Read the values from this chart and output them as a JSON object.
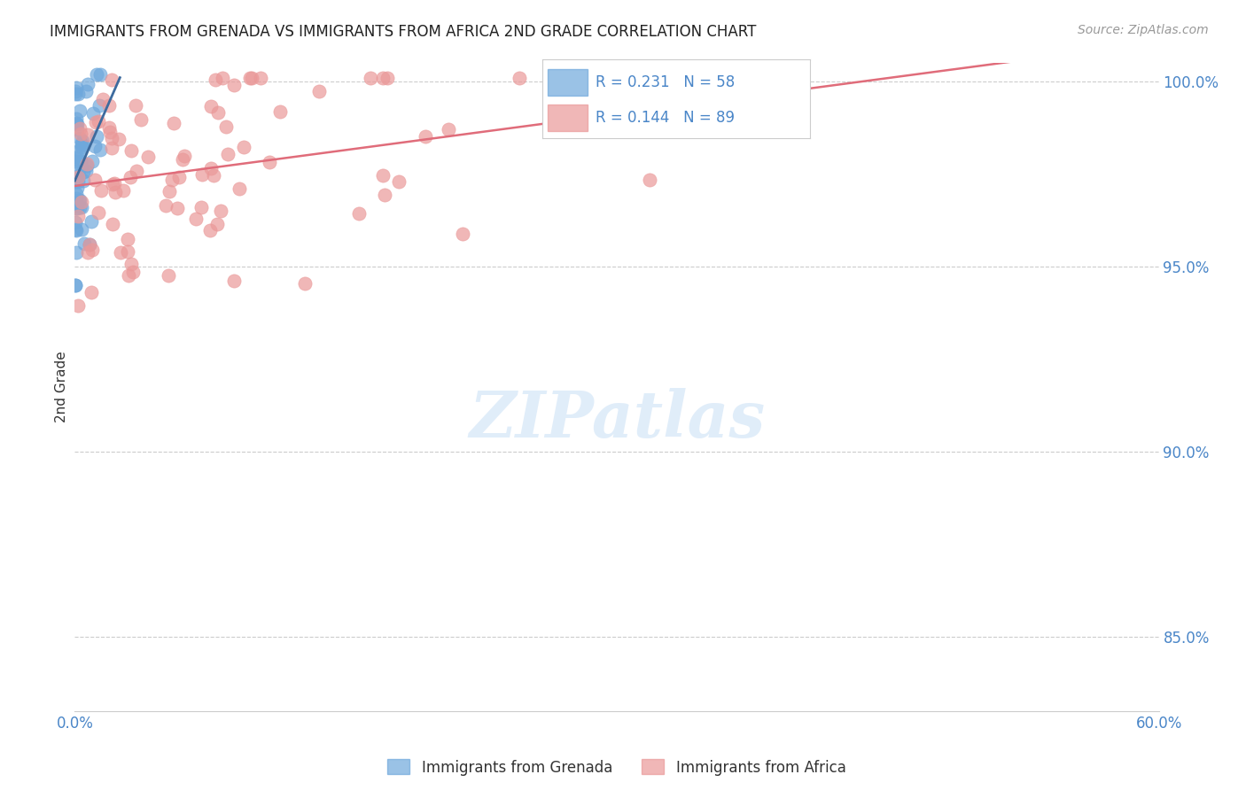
{
  "title": "IMMIGRANTS FROM GRENADA VS IMMIGRANTS FROM AFRICA 2ND GRADE CORRELATION CHART",
  "source": "Source: ZipAtlas.com",
  "ylabel": "2nd Grade",
  "xlim": [
    0.0,
    0.6
  ],
  "ylim": [
    0.83,
    1.005
  ],
  "xticks": [
    0.0,
    0.1,
    0.2,
    0.3,
    0.4,
    0.5,
    0.6
  ],
  "xticklabels": [
    "0.0%",
    "",
    "",
    "",
    "",
    "",
    "60.0%"
  ],
  "yticks_right": [
    0.85,
    0.9,
    0.95,
    1.0
  ],
  "yticklabels_right": [
    "85.0%",
    "90.0%",
    "95.0%",
    "100.0%"
  ],
  "blue_color": "#6fa8dc",
  "pink_color": "#ea9999",
  "blue_line_color": "#3d6b9e",
  "pink_line_color": "#e06c7a",
  "blue_R": 0.231,
  "blue_N": 58,
  "pink_R": 0.144,
  "pink_N": 89,
  "blue_legend": "Immigrants from Grenada",
  "pink_legend": "Immigrants from Africa",
  "watermark": "ZIPatlas",
  "axis_color": "#4a86c8",
  "grid_color": "#cccccc",
  "random_seed": 42
}
